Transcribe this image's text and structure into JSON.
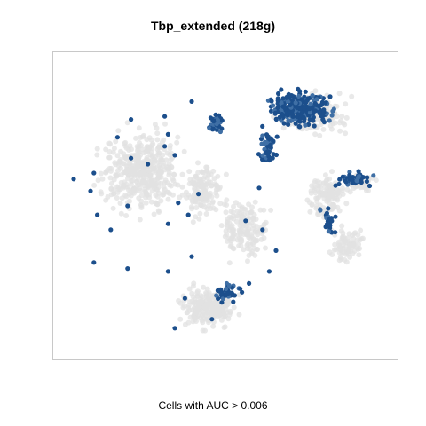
{
  "chart_data": {
    "type": "scatter",
    "title": "Tbp_extended (218g)",
    "xlabel": "Cells with AUC > 0.006",
    "ylabel": "",
    "grid": false,
    "legend": "none",
    "axes_ticks": false,
    "colors": {
      "background_cells": "#e2e2e2",
      "highlighted_cells": "#1c4f8c",
      "highlighted_cells_light": "#3f6fa5",
      "frame": "#c8c8c8"
    },
    "series": [
      {
        "role": "all-cells",
        "color": "#e2e2e2",
        "regions": [
          {
            "cx": 0.25,
            "cy": 0.62,
            "rx": 0.19,
            "ry": 0.22,
            "n": 420
          },
          {
            "cx": 0.43,
            "cy": 0.55,
            "rx": 0.1,
            "ry": 0.15,
            "n": 140
          },
          {
            "cx": 0.56,
            "cy": 0.42,
            "rx": 0.12,
            "ry": 0.16,
            "n": 160
          },
          {
            "cx": 0.45,
            "cy": 0.16,
            "rx": 0.14,
            "ry": 0.11,
            "n": 220
          },
          {
            "cx": 0.76,
            "cy": 0.81,
            "rx": 0.17,
            "ry": 0.12,
            "n": 180
          },
          {
            "cx": 0.8,
            "cy": 0.53,
            "rx": 0.1,
            "ry": 0.12,
            "n": 120
          },
          {
            "cx": 0.86,
            "cy": 0.37,
            "rx": 0.08,
            "ry": 0.1,
            "n": 80
          },
          {
            "cx": 0.9,
            "cy": 0.58,
            "rx": 0.07,
            "ry": 0.05,
            "n": 60
          }
        ]
      },
      {
        "role": "cells-auc-above-threshold",
        "color": "#1c4f8c",
        "regions": [
          {
            "cx": 0.72,
            "cy": 0.83,
            "rx": 0.16,
            "ry": 0.1,
            "n": 260
          },
          {
            "cx": 0.63,
            "cy": 0.7,
            "rx": 0.05,
            "ry": 0.08,
            "n": 40
          },
          {
            "cx": 0.47,
            "cy": 0.78,
            "rx": 0.04,
            "ry": 0.06,
            "n": 35
          },
          {
            "cx": 0.88,
            "cy": 0.59,
            "rx": 0.09,
            "ry": 0.04,
            "n": 50
          },
          {
            "cx": 0.8,
            "cy": 0.45,
            "rx": 0.05,
            "ry": 0.08,
            "n": 25
          },
          {
            "cx": 0.5,
            "cy": 0.21,
            "rx": 0.07,
            "ry": 0.05,
            "n": 45
          }
        ],
        "points": [
          {
            "x": 0.33,
            "y": 0.74
          },
          {
            "x": 0.32,
            "y": 0.7
          },
          {
            "x": 0.35,
            "y": 0.67
          },
          {
            "x": 0.22,
            "y": 0.66
          },
          {
            "x": 0.11,
            "y": 0.61
          },
          {
            "x": 0.1,
            "y": 0.55
          },
          {
            "x": 0.12,
            "y": 0.47
          },
          {
            "x": 0.05,
            "y": 0.59
          },
          {
            "x": 0.18,
            "y": 0.73
          },
          {
            "x": 0.22,
            "y": 0.79
          },
          {
            "x": 0.21,
            "y": 0.5
          },
          {
            "x": 0.16,
            "y": 0.42
          },
          {
            "x": 0.11,
            "y": 0.31
          },
          {
            "x": 0.21,
            "y": 0.29
          },
          {
            "x": 0.36,
            "y": 0.51
          },
          {
            "x": 0.33,
            "y": 0.44
          },
          {
            "x": 0.42,
            "y": 0.54
          },
          {
            "x": 0.4,
            "y": 0.33
          },
          {
            "x": 0.33,
            "y": 0.28
          },
          {
            "x": 0.6,
            "y": 0.56
          },
          {
            "x": 0.56,
            "y": 0.45
          },
          {
            "x": 0.61,
            "y": 0.42
          },
          {
            "x": 0.65,
            "y": 0.35
          },
          {
            "x": 0.63,
            "y": 0.28
          },
          {
            "x": 0.57,
            "y": 0.24
          },
          {
            "x": 0.38,
            "y": 0.19
          },
          {
            "x": 0.35,
            "y": 0.09
          },
          {
            "x": 0.46,
            "y": 0.12
          },
          {
            "x": 0.4,
            "y": 0.85
          },
          {
            "x": 0.32,
            "y": 0.8
          },
          {
            "x": 0.27,
            "y": 0.64
          },
          {
            "x": 0.39,
            "y": 0.47
          }
        ]
      }
    ]
  }
}
